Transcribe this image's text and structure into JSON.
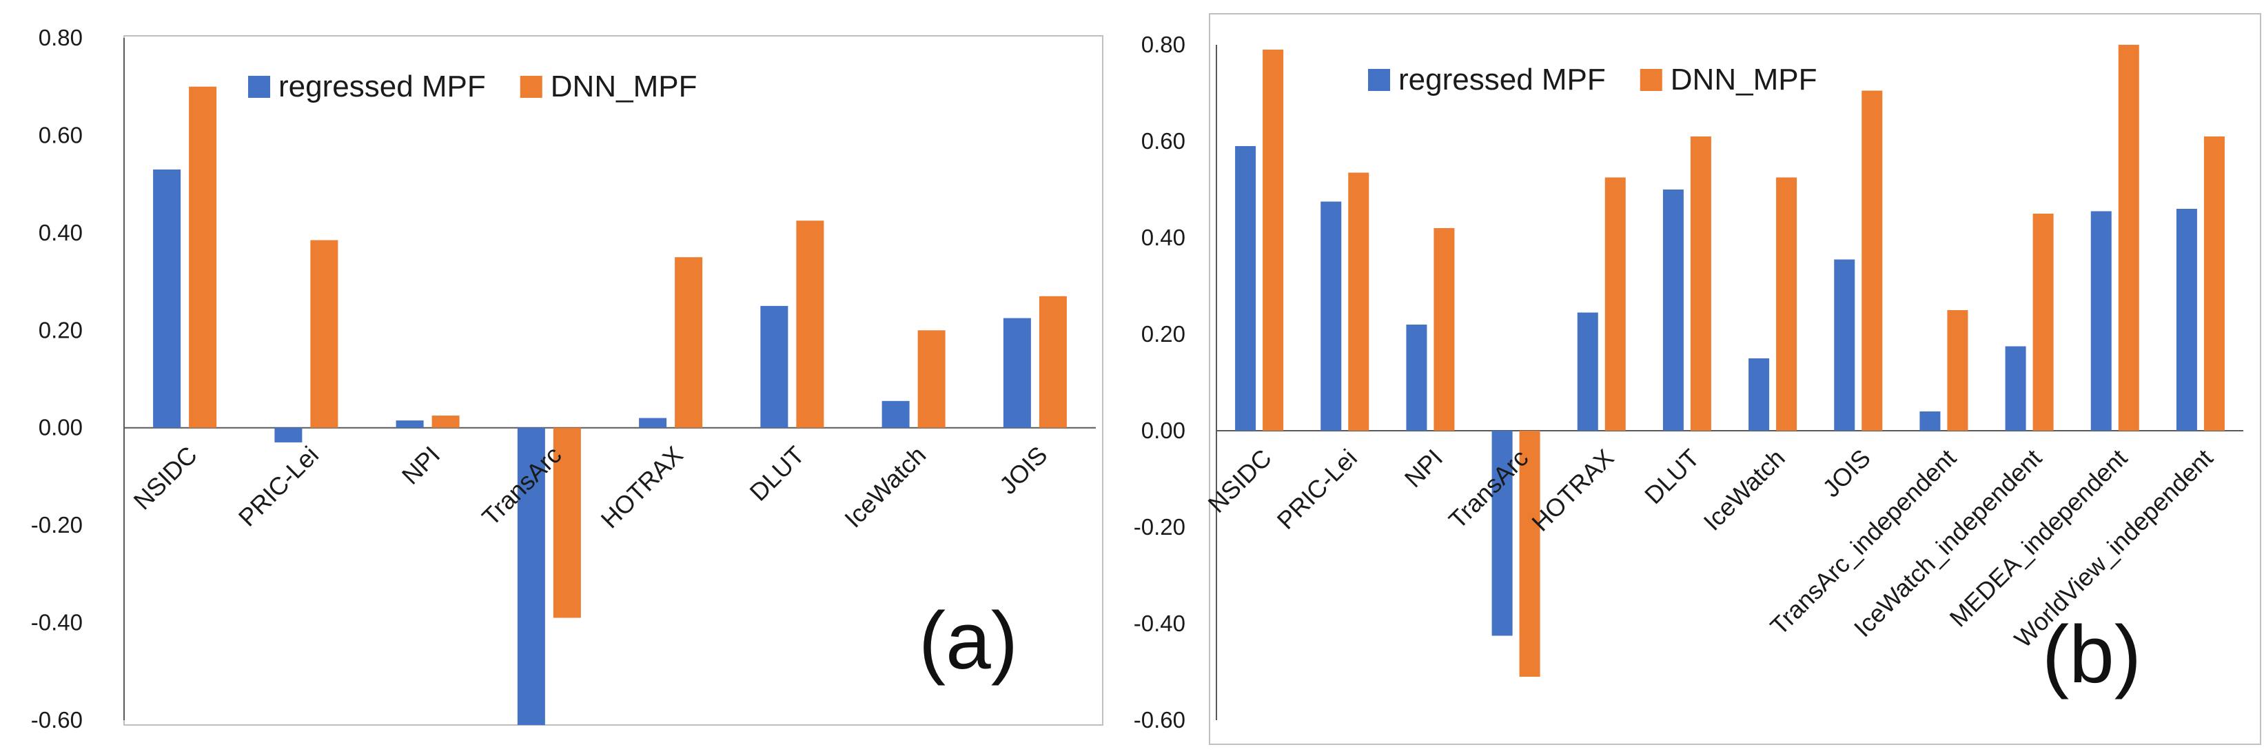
{
  "chart_data": [
    {
      "type": "bar",
      "panel_label": "(a)",
      "categories": [
        "NSIDC",
        "PRIC-Lei",
        "NPI",
        "TransArc",
        "HOTRAX",
        "DLUT",
        "IceWatch",
        "JOIS"
      ],
      "series": [
        {
          "name": "regressed MPF",
          "color": "#4472C4",
          "values": [
            0.53,
            -0.03,
            0.015,
            -0.61,
            0.02,
            0.25,
            0.055,
            0.225
          ]
        },
        {
          "name": "DNN_MPF",
          "color": "#ED7D31",
          "values": [
            0.7,
            0.385,
            0.025,
            -0.39,
            0.35,
            0.425,
            0.2,
            0.27
          ]
        }
      ],
      "ylim": [
        -0.6,
        0.8
      ],
      "yticks": [
        0.8,
        0.6,
        0.4,
        0.2,
        0.0,
        -0.2,
        -0.4,
        -0.6
      ],
      "ytick_labels": [
        "0.80",
        "0.60",
        "0.40",
        "0.20",
        "0.00",
        "-0.20",
        "-0.40",
        "-0.60"
      ],
      "title": "",
      "xlabel": "",
      "ylabel": "",
      "grid": false,
      "legend_position": "top"
    },
    {
      "type": "bar",
      "panel_label": "(b)",
      "categories": [
        "NSIDC",
        "PRIC-Lei",
        "NPI",
        "TransArc",
        "HOTRAX",
        "DLUT",
        "IceWatch",
        "JOIS",
        "TransArc_independent",
        "IceWatch_independent",
        "MEDEA_independent",
        "WorldView_independent"
      ],
      "series": [
        {
          "name": "regressed MPF",
          "color": "#4472C4",
          "values": [
            0.59,
            0.475,
            0.22,
            -0.425,
            0.245,
            0.5,
            0.15,
            0.355,
            0.04,
            0.175,
            0.455,
            0.46
          ]
        },
        {
          "name": "DNN_MPF",
          "color": "#ED7D31",
          "values": [
            0.79,
            0.535,
            0.42,
            -0.51,
            0.525,
            0.61,
            0.525,
            0.705,
            0.25,
            0.45,
            0.8,
            0.61
          ]
        }
      ],
      "ylim": [
        -0.6,
        0.8
      ],
      "yticks": [
        0.8,
        0.6,
        0.4,
        0.2,
        0.0,
        -0.2,
        -0.4,
        -0.6
      ],
      "ytick_labels": [
        "0.80",
        "0.60",
        "0.40",
        "0.20",
        "0.00",
        "-0.20",
        "-0.40",
        "-0.60"
      ],
      "title": "",
      "xlabel": "",
      "ylabel": "",
      "grid": false,
      "legend_position": "top"
    }
  ]
}
